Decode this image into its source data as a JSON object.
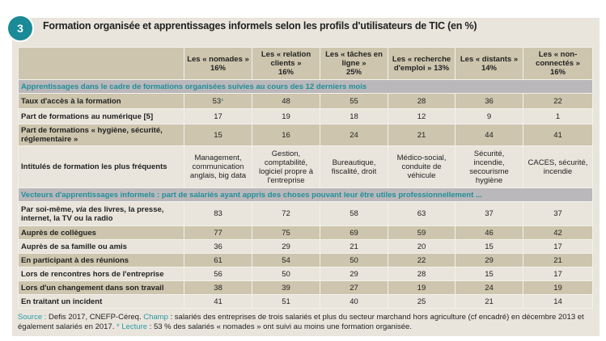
{
  "badge": "3",
  "title": "Formation organisée et apprentissages informels selon les profils d'utilisateurs de TIC (en %)",
  "columns": [
    {
      "line1": "Les « nomades »",
      "line2": "16%"
    },
    {
      "line1": "Les « relation clients »",
      "line2": "16%"
    },
    {
      "line1": "Les « tâches en ligne »",
      "line2": "25%"
    },
    {
      "line1": "Les « recherche d'emploi » 13%",
      "line2": ""
    },
    {
      "line1": "Les « distants »",
      "line2": "14%"
    },
    {
      "line1": "Les « non-connectés »",
      "line2": "16%"
    }
  ],
  "section1": "Apprentissages dans le cadre de formations organisées suivies au cours des 12 derniers mois",
  "rows1": [
    {
      "label": "Taux d'accès à la formation",
      "values": [
        "53",
        "48",
        "55",
        "28",
        "36",
        "22"
      ],
      "marker": "*"
    },
    {
      "label": "Part de formations au numérique [5]",
      "values": [
        "17",
        "19",
        "18",
        "12",
        "9",
        "1"
      ]
    },
    {
      "label": "Part de formations « hygiène, sécurité, réglementaire »",
      "values": [
        "15",
        "16",
        "24",
        "21",
        "44",
        "41"
      ]
    },
    {
      "label": "Intitulés de formation les plus fréquents",
      "values": [
        "Management, communication anglais, big data",
        "Gestion, comptabilité, logiciel propre à l'entreprise",
        "Bureautique, fiscalité, droit",
        "Médico-social, conduite de véhicule",
        "Sécurité, incendie, secourisme hygiène",
        "CACES, sécurité, incendie"
      ]
    }
  ],
  "section2": "Vecteurs d'apprentissages informels : part de salariés ayant appris des choses pouvant leur être utiles professionnellement ...",
  "row_soi": {
    "label_a": "Par soi-même, ",
    "label_via": "via",
    "label_b": " des livres, la presse, internet, la TV ou la radio",
    "values": [
      "83",
      "72",
      "58",
      "63",
      "37",
      "37"
    ]
  },
  "rows2": [
    {
      "label": "Auprès de collègues",
      "values": [
        "77",
        "75",
        "69",
        "59",
        "46",
        "42"
      ]
    },
    {
      "label": "Auprès de sa famille ou amis",
      "values": [
        "36",
        "29",
        "21",
        "20",
        "15",
        "17"
      ]
    },
    {
      "label": "En participant à des réunions",
      "values": [
        "61",
        "54",
        "50",
        "22",
        "29",
        "21"
      ]
    },
    {
      "label": "Lors de rencontres hors de l'entreprise",
      "values": [
        "56",
        "50",
        "29",
        "28",
        "15",
        "17"
      ]
    },
    {
      "label": "Lors d'un changement dans son travail",
      "values": [
        "38",
        "39",
        "27",
        "19",
        "24",
        "19"
      ]
    },
    {
      "label": "En traitant un incident",
      "values": [
        "41",
        "51",
        "40",
        "25",
        "21",
        "14"
      ]
    }
  ],
  "footer": {
    "source_label": "Source :",
    "source_text": " Defis 2017, CNEFP-Céreq. ",
    "champ_label": "Champ",
    "champ_text": " : salariés des entreprises de trois salariés et plus du secteur marchand hors agriculture (cf encadré) en décembre 2013 et  également salariés en 2017. ",
    "lecture_label": "* Lecture",
    "lecture_text": " : 53 % des salariés « nomades » ont suivi au moins une formation organisée."
  }
}
